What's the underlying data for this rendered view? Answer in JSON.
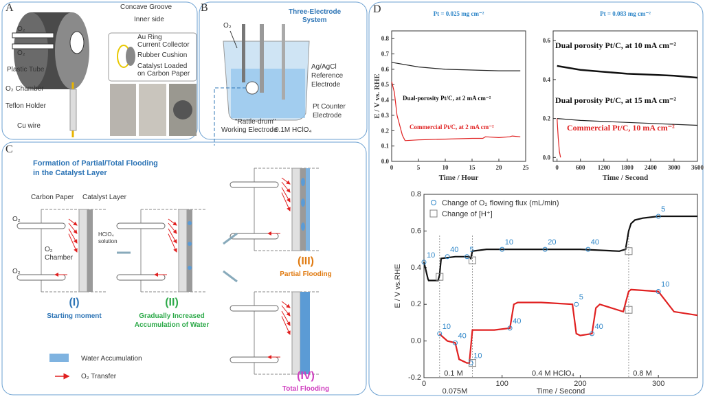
{
  "panels": {
    "a": "A",
    "b": "B",
    "c": "C",
    "d": "D"
  },
  "panel_a": {
    "concave_groove": "Concave Groove",
    "inner_side": "Inner side",
    "o2_top": "O₂",
    "o2_bottom": "O₂",
    "plastic_tube": "Plastic Tube",
    "au_ring": [
      "Au Ring",
      "Current Collector"
    ],
    "rubber": "Rubber Cushion",
    "catalyst": [
      "Catalyst Loaded",
      "on Carbon Paper"
    ],
    "chamber": "O₂ Chamber",
    "teflon": "Teflon Holder",
    "cu_wire": "Cu wire"
  },
  "panel_b": {
    "title": [
      "Three-Electrode",
      "System"
    ],
    "o2": "O₂",
    "reference": [
      "Ag/AgCl",
      "Reference",
      "Electrode"
    ],
    "counter": [
      "Pt Counter",
      "Electrode"
    ],
    "working": [
      "\"Rattle-drum\"",
      "Working Electrode"
    ],
    "electrolyte": "0.1M HClO₄"
  },
  "panel_c": {
    "title": [
      "Formation of Partial/Total Flooding",
      "in the Catalyst Layer"
    ],
    "carbon_paper": "Carbon Paper",
    "catalyst_layer": "Catalyst Layer",
    "o2_in": "O₂",
    "o2_out": "O₂",
    "chamber": [
      "O₂",
      "Chamber"
    ],
    "solution": [
      "HClO₄",
      "solution"
    ],
    "stages": [
      {
        "numeral": "(I)",
        "caption": [
          "Starting moment"
        ]
      },
      {
        "numeral": "(II)",
        "caption": [
          "Gradually Increased",
          "Accumulation of Water"
        ]
      },
      {
        "numeral": "(III)",
        "caption": [
          "Partial Flooding"
        ]
      },
      {
        "numeral": "(IV)",
        "caption": [
          "Total Flooding"
        ]
      }
    ],
    "legend": [
      "Water Accumulation",
      "O₂ Transfer"
    ]
  },
  "chart_data": [
    {
      "type": "line",
      "subtitle": "Pt = 0.025 mg cm⁻²",
      "ylabel": "E / V vs. RHE",
      "xlabel": "Time / Hour",
      "xlim": [
        0,
        25
      ],
      "xticks": [
        0,
        5,
        10,
        15,
        20,
        25
      ],
      "ylim": [
        0,
        0.85
      ],
      "yticks": [
        {
          "value": 0,
          "label": "0.0"
        },
        0.1,
        0.2,
        0.3,
        0.4,
        0.5,
        0.6,
        0.7,
        0.8
      ],
      "series": [
        {
          "name": "Dual-porosity Pt/C,  at 2 mA cm⁻²",
          "color": "#222222",
          "x": [
            0,
            5,
            10,
            15,
            20,
            24
          ],
          "values": [
            0.645,
            0.615,
            0.6,
            0.595,
            0.59,
            0.59
          ]
        },
        {
          "name": "Commercial Pt/C, at 2 mA cm⁻²",
          "color": "#e02020",
          "x": [
            0,
            0.5,
            1,
            2,
            2.5,
            5,
            10,
            15,
            17,
            17.5,
            20,
            22,
            22.5,
            24
          ],
          "values": [
            0.52,
            0.45,
            0.3,
            0.17,
            0.135,
            0.14,
            0.145,
            0.15,
            0.15,
            0.16,
            0.155,
            0.16,
            0.165,
            0.16
          ]
        }
      ]
    },
    {
      "type": "line",
      "subtitle": "Pt = 0.083 mg cm⁻²",
      "xlabel": "Time / Second",
      "xlim": [
        -100,
        3600
      ],
      "xticks": [
        0,
        600,
        1200,
        1800,
        2400,
        3000,
        3600
      ],
      "ylim": [
        -0.02,
        0.65
      ],
      "yticks": [
        {
          "value": 0,
          "label": "0.0"
        },
        0.2,
        0.4,
        0.6
      ],
      "series": [
        {
          "name": "Dual porosity Pt/C, at 10 mA cm⁻²",
          "color": "#111111",
          "x": [
            0,
            600,
            1200,
            1800,
            2400,
            3000,
            3600
          ],
          "values": [
            0.47,
            0.45,
            0.44,
            0.43,
            0.425,
            0.42,
            0.41
          ]
        },
        {
          "name": "Dual porosity Pt/C, at 15 mA cm⁻²",
          "color": "#222222",
          "x": [
            0,
            600,
            1200,
            1800,
            2400,
            3000,
            3600
          ],
          "values": [
            0.2,
            0.19,
            0.185,
            0.18,
            0.175,
            0.17,
            0.165
          ]
        },
        {
          "name": "Commercial Pt/C, 10 mA cm⁻²",
          "color": "#e02020",
          "x": [
            0,
            30,
            60,
            90
          ],
          "values": [
            0.2,
            0.1,
            0.03,
            0
          ]
        }
      ]
    },
    {
      "type": "line",
      "ylabel": "E / V vs.RHE",
      "xlabel": "Time / Second",
      "xlim": [
        0,
        350
      ],
      "xticks": [
        0,
        100,
        200,
        300
      ],
      "ylim": [
        -0.2,
        0.8
      ],
      "yticks": [
        -0.2,
        {
          "value": 0,
          "label": "0.0"
        },
        0.2,
        0.4,
        0.6,
        0.8
      ],
      "vlines": [
        20,
        62,
        262
      ],
      "annotations": [
        "0.1 M",
        "0.4 M HClO₄",
        "0.8 M",
        "0.075M"
      ],
      "series": [
        {
          "color": "#111111",
          "x": [
            0,
            5,
            6,
            18,
            20,
            22,
            40,
            58,
            60,
            62,
            80,
            100,
            150,
            200,
            250,
            258,
            262,
            265,
            270,
            280,
            300,
            350
          ],
          "values": [
            0.43,
            0.34,
            0.33,
            0.33,
            0.36,
            0.45,
            0.46,
            0.46,
            0.45,
            0.49,
            0.5,
            0.5,
            0.5,
            0.5,
            0.49,
            0.5,
            0.6,
            0.64,
            0.66,
            0.67,
            0.68,
            0.68
          ]
        },
        {
          "color": "#e02020",
          "x": [
            20,
            22,
            30,
            40,
            45,
            55,
            58,
            62,
            65,
            90,
            110,
            115,
            120,
            150,
            190,
            195,
            200,
            215,
            220,
            225,
            255,
            262,
            265,
            300,
            320,
            350
          ],
          "values": [
            0.04,
            0.03,
            0,
            -0.01,
            -0.1,
            -0.12,
            -0.12,
            0.06,
            0.06,
            0.06,
            0.07,
            0.2,
            0.21,
            0.21,
            0.2,
            0.04,
            0.03,
            0.04,
            0.18,
            0.2,
            0.16,
            0.27,
            0.28,
            0.27,
            0.16,
            0.14
          ]
        },
        {
          "name": "Change of O₂ flowing flux (mL/min)",
          "marker": "circle",
          "color": "#2e86c8",
          "x": [
            0,
            30,
            55,
            100,
            155,
            210,
            300,
            20,
            40,
            60,
            110,
            195,
            215,
            300
          ],
          "values": [
            0.43,
            0.46,
            0.46,
            0.5,
            0.5,
            0.5,
            0.68,
            0.04,
            -0.01,
            -0.12,
            0.07,
            0.2,
            0.04,
            0.27
          ],
          "point_labels": [
            "10",
            "40",
            "5",
            "10",
            "20",
            "40",
            "5",
            "10",
            "40",
            "10",
            "40",
            "5",
            "40",
            "10"
          ]
        },
        {
          "name": "Change of [H⁺]",
          "marker": "square",
          "color": "#808080",
          "x": [
            20,
            62,
            262,
            62,
            262
          ],
          "values": [
            0.35,
            0.44,
            0.49,
            -0.12,
            0.17
          ]
        }
      ]
    }
  ]
}
